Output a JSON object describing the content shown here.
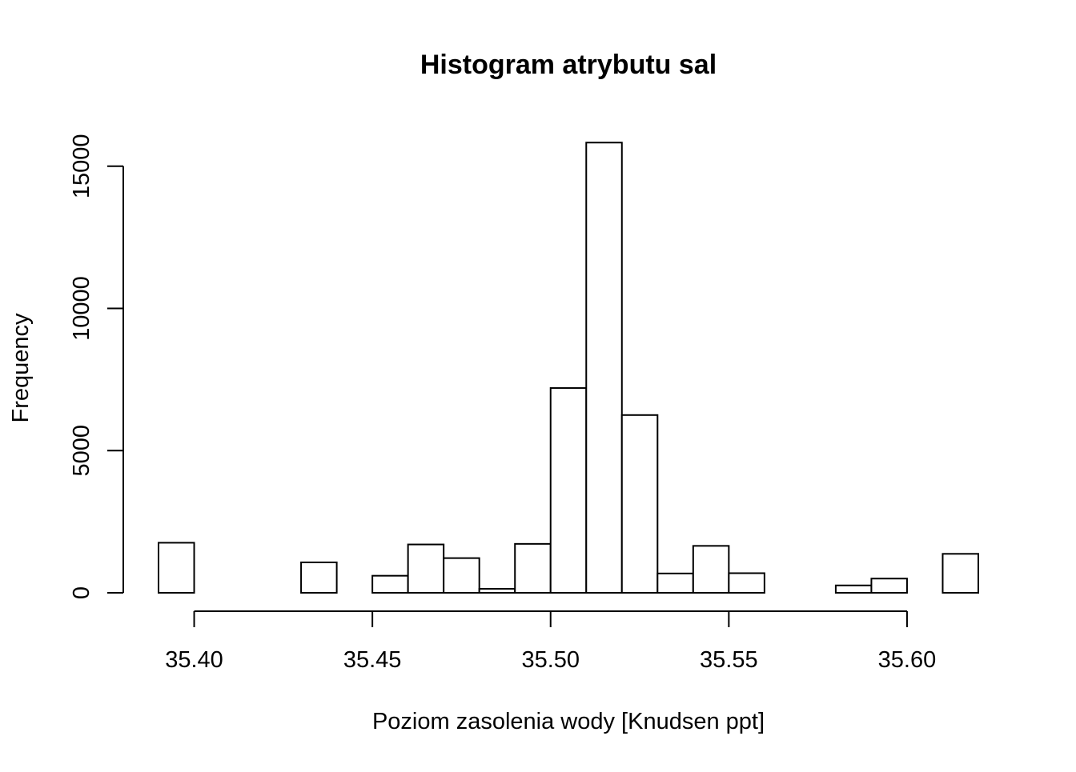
{
  "chart_data": {
    "type": "histogram",
    "title": "Histogram atrybutu sal",
    "xlabel": "Poziom zasolenia wody [Knudsen ppt]",
    "ylabel": "Frequency",
    "x_ticks": [
      "35.40",
      "35.45",
      "35.50",
      "35.55",
      "35.60"
    ],
    "x_tick_values": [
      35.4,
      35.45,
      35.5,
      35.55,
      35.6
    ],
    "y_ticks": [
      "0",
      "5000",
      "10000",
      "15000"
    ],
    "y_tick_values": [
      0,
      5000,
      10000,
      15000
    ],
    "xlim": [
      35.39,
      35.62
    ],
    "ylim": [
      0,
      15830
    ],
    "bin_width": 0.01,
    "bins": [
      {
        "start": 35.39,
        "end": 35.4,
        "count": 1760
      },
      {
        "start": 35.4,
        "end": 35.41,
        "count": 0
      },
      {
        "start": 35.41,
        "end": 35.42,
        "count": 0
      },
      {
        "start": 35.42,
        "end": 35.43,
        "count": 0
      },
      {
        "start": 35.43,
        "end": 35.44,
        "count": 1070
      },
      {
        "start": 35.44,
        "end": 35.45,
        "count": 0
      },
      {
        "start": 35.45,
        "end": 35.46,
        "count": 600
      },
      {
        "start": 35.46,
        "end": 35.47,
        "count": 1700
      },
      {
        "start": 35.47,
        "end": 35.48,
        "count": 1220
      },
      {
        "start": 35.48,
        "end": 35.49,
        "count": 140
      },
      {
        "start": 35.49,
        "end": 35.5,
        "count": 1720
      },
      {
        "start": 35.5,
        "end": 35.51,
        "count": 7200
      },
      {
        "start": 35.51,
        "end": 35.52,
        "count": 15830
      },
      {
        "start": 35.52,
        "end": 35.53,
        "count": 6250
      },
      {
        "start": 35.53,
        "end": 35.54,
        "count": 680
      },
      {
        "start": 35.54,
        "end": 35.55,
        "count": 1650
      },
      {
        "start": 35.55,
        "end": 35.56,
        "count": 690
      },
      {
        "start": 35.56,
        "end": 35.57,
        "count": 0
      },
      {
        "start": 35.57,
        "end": 35.58,
        "count": 0
      },
      {
        "start": 35.58,
        "end": 35.59,
        "count": 260
      },
      {
        "start": 35.59,
        "end": 35.6,
        "count": 500
      },
      {
        "start": 35.6,
        "end": 35.61,
        "count": 0
      },
      {
        "start": 35.61,
        "end": 35.62,
        "count": 1370
      }
    ],
    "bar_fill": "#ffffff",
    "bar_stroke": "#000000",
    "grid": false,
    "legend": "none"
  }
}
